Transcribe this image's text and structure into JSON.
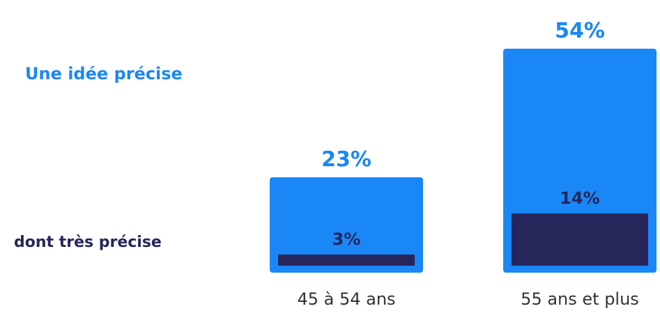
{
  "legend": {
    "outer_label": "Une idée précise",
    "inner_label": "dont très précise"
  },
  "colors": {
    "outer": "#1a87f7",
    "inner": "#26265a",
    "text": "#333333"
  },
  "chart_data": {
    "type": "bar",
    "categories": [
      "45 à 54 ans",
      "55 ans et plus"
    ],
    "series": [
      {
        "name": "Une idée précise",
        "values": [
          23,
          54
        ],
        "labels": [
          "23%",
          "54%"
        ]
      },
      {
        "name": "dont très précise",
        "values": [
          3,
          14
        ],
        "labels": [
          "3%",
          "14%"
        ]
      }
    ],
    "ylim": [
      0,
      54
    ]
  }
}
